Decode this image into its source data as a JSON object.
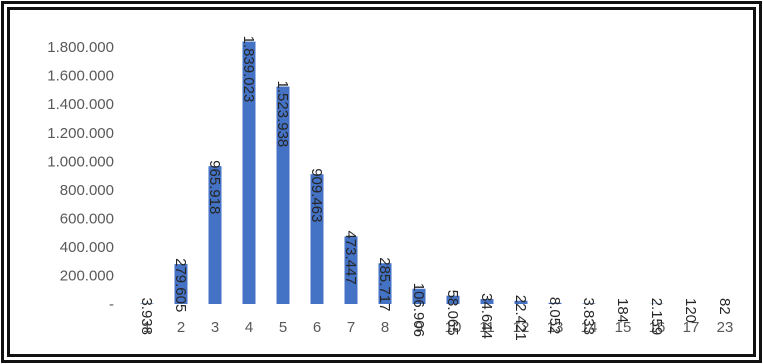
{
  "chart_data": {
    "type": "bar",
    "title": "",
    "xlabel": "",
    "ylabel": "",
    "categories": [
      "1",
      "2",
      "3",
      "4",
      "5",
      "6",
      "7",
      "8",
      "9",
      "10",
      "11",
      "12",
      "13",
      "14",
      "15",
      "16",
      "17",
      "23"
    ],
    "values": [
      3938,
      279605,
      965918,
      1839023,
      1523938,
      909463,
      473447,
      285717,
      106906,
      58065,
      34644,
      22421,
      8052,
      3833,
      184,
      2159,
      120,
      82
    ],
    "data_labels": [
      "3.938",
      "279.605",
      "965.918",
      "1.839.023",
      "1.523.938",
      "909.463",
      "473.447",
      "285.717",
      "106.906",
      "58.065",
      "34.644",
      "22.421",
      "8.052",
      "3.833",
      "184",
      "2.159",
      "120",
      "82"
    ],
    "y_ticks": [
      0,
      200000,
      400000,
      600000,
      800000,
      1000000,
      1200000,
      1400000,
      1600000,
      1800000
    ],
    "y_tick_labels": [
      "-",
      "200.000",
      "400.000",
      "600.000",
      "800.000",
      "1.000.000",
      "1.200.000",
      "1.400.000",
      "1.600.000",
      "1.800.000"
    ],
    "ylim": [
      0,
      1850000
    ],
    "grid": false,
    "legend": "none",
    "bar_color": "#4472C4"
  }
}
